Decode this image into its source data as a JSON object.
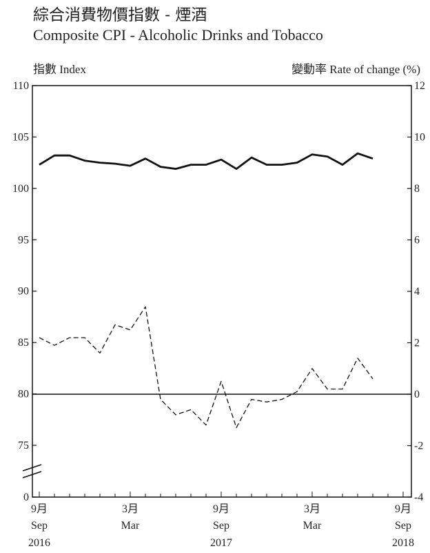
{
  "title_zh": "綜合消費物價指數 - 煙酒",
  "title_en": "Composite CPI - Alcoholic Drinks and Tobacco",
  "left_axis_label": "指數 Index",
  "right_axis_label": "變動率 Rate of change (%)",
  "chart_data": {
    "type": "line",
    "title": "Composite CPI - Alcoholic Drinks and Tobacco",
    "x": [
      "2016-09",
      "2016-10",
      "2016-11",
      "2016-12",
      "2017-01",
      "2017-02",
      "2017-03",
      "2017-04",
      "2017-05",
      "2017-06",
      "2017-07",
      "2017-08",
      "2017-09",
      "2017-10",
      "2017-11",
      "2017-12",
      "2018-01",
      "2018-02",
      "2018-03",
      "2018-04",
      "2018-05",
      "2018-06",
      "2018-07"
    ],
    "x_ticks": [
      {
        "x": "2016-09",
        "zh": "9月",
        "en": "Sep",
        "year": "2016"
      },
      {
        "x": "2017-03",
        "zh": "3月",
        "en": "Mar",
        "year": ""
      },
      {
        "x": "2017-09",
        "zh": "9月",
        "en": "Sep",
        "year": "2017"
      },
      {
        "x": "2018-03",
        "zh": "3月",
        "en": "Mar",
        "year": ""
      },
      {
        "x": "2018-09",
        "zh": "9月",
        "en": "Sep",
        "year": "2018"
      }
    ],
    "xlim": [
      "2016-09",
      "2018-09"
    ],
    "series": [
      {
        "axis": "left",
        "style": "solid",
        "values": [
          102.3,
          103.2,
          103.2,
          102.7,
          102.5,
          102.4,
          102.2,
          102.9,
          102.1,
          101.9,
          102.3,
          102.3,
          102.8,
          101.9,
          103.0,
          102.3,
          102.3,
          102.5,
          103.3,
          103.1,
          102.3,
          103.4,
          102.9
        ]
      },
      {
        "axis": "right",
        "style": "dashed",
        "values": [
          2.2,
          1.9,
          2.2,
          2.2,
          1.6,
          2.7,
          2.5,
          3.4,
          -0.2,
          -0.8,
          -0.6,
          -1.2,
          0.5,
          -1.3,
          -0.2,
          -0.3,
          -0.2,
          0.1,
          1.0,
          0.2,
          0.2,
          1.4,
          0.6
        ]
      }
    ],
    "left_axis": {
      "ylim": [
        75,
        110
      ],
      "ticks": [
        "0",
        "75",
        "80",
        "85",
        "90",
        "95",
        "100",
        "105",
        "110"
      ],
      "break": true
    },
    "right_axis": {
      "ylim": [
        -4,
        12
      ],
      "ticks": [
        "-4",
        "-2",
        "0",
        "2",
        "4",
        "6",
        "8",
        "10",
        "12"
      ]
    },
    "reference_line": {
      "axis": "right",
      "value": 0
    },
    "grid": false
  }
}
